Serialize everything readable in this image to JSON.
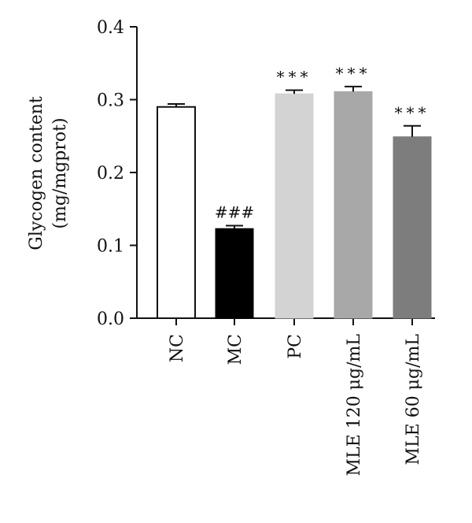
{
  "chart_data": {
    "type": "bar",
    "title": "",
    "xlabel": "",
    "ylabel_lines": [
      "Glycogen content",
      "(mg/mgprot)"
    ],
    "ylim": [
      0.0,
      0.4
    ],
    "yticks": [
      "0.0",
      "0.1",
      "0.2",
      "0.3",
      "0.4"
    ],
    "grid": false,
    "categories": [
      "NC",
      "MC",
      "PC",
      "MLE 120 μg/mL",
      "MLE 60 μg/mL"
    ],
    "values": [
      0.29,
      0.123,
      0.308,
      0.311,
      0.249
    ],
    "errors": [
      0.004,
      0.004,
      0.005,
      0.007,
      0.015
    ],
    "bar_colors": [
      "#ffffff",
      "#000000",
      "#d3d3d3",
      "#a8a8a8",
      "#7d7d7d"
    ],
    "significance": [
      "",
      "###",
      "***",
      "***",
      "***"
    ]
  }
}
